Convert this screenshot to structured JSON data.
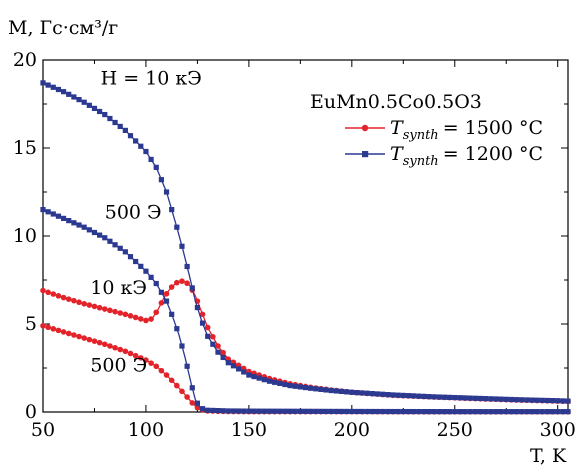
{
  "chart_data": {
    "type": "line",
    "ylabel": "M, Гс·см³/г",
    "xlabel": "T, K",
    "xlim": [
      50,
      305
    ],
    "ylim": [
      0,
      20
    ],
    "xticks": [
      50,
      100,
      150,
      200,
      250,
      300
    ],
    "yticks": [
      0,
      5,
      10,
      15,
      20
    ],
    "legend_title": "EuMn0.5Co0.5O3",
    "legend_placement": "top-right",
    "annotations": [
      {
        "text": "H = 10 кЭ",
        "x": 78,
        "y": 18.6
      },
      {
        "text": "500 Э",
        "x": 80,
        "y": 11.0
      },
      {
        "text": "10 кЭ",
        "x": 73,
        "y": 6.7
      },
      {
        "text": "500 Э",
        "x": 73,
        "y": 2.3
      }
    ],
    "series": [
      {
        "name": "T_synth = 1500 °C",
        "legend_main": "T",
        "legend_sub": "synth",
        "legend_rest": "= 1500 °C",
        "color": "#e3232a",
        "marker": "circle",
        "field": "10 кЭ",
        "x": [
          50,
          60,
          70,
          80,
          90,
          100,
          103,
          106,
          109,
          112,
          115,
          118,
          121,
          124,
          127,
          130,
          135,
          140,
          150,
          160,
          170,
          180,
          190,
          200,
          220,
          240,
          260,
          280,
          300,
          305
        ],
        "values": [
          6.9,
          6.5,
          6.15,
          5.85,
          5.55,
          5.2,
          5.3,
          5.85,
          6.55,
          7.05,
          7.35,
          7.45,
          7.25,
          6.6,
          5.7,
          4.8,
          3.75,
          3.0,
          2.3,
          1.9,
          1.6,
          1.4,
          1.25,
          1.12,
          0.95,
          0.85,
          0.76,
          0.68,
          0.62,
          0.6
        ]
      },
      {
        "name": "T_synth = 1500 °C (500 Э)",
        "color": "#e3232a",
        "marker": "circle",
        "field": "500 Э",
        "x": [
          50,
          60,
          70,
          80,
          90,
          100,
          105,
          110,
          115,
          120,
          123,
          126,
          130,
          140,
          150,
          200,
          250,
          305
        ],
        "values": [
          4.9,
          4.55,
          4.2,
          3.85,
          3.45,
          2.95,
          2.6,
          2.1,
          1.5,
          0.85,
          0.45,
          0.15,
          0.06,
          0.03,
          0.02,
          0.02,
          0.01,
          0.01
        ]
      },
      {
        "name": "T_synth = 1200 °C",
        "legend_main": "T",
        "legend_sub": "synth",
        "legend_rest": "= 1200 °C",
        "color": "#2b3990",
        "marker": "square",
        "field": "10 кЭ",
        "x": [
          50,
          60,
          70,
          80,
          90,
          100,
          105,
          110,
          115,
          118,
          121,
          124,
          127,
          130,
          135,
          140,
          150,
          160,
          170,
          180,
          190,
          200,
          220,
          240,
          260,
          280,
          300,
          305
        ],
        "values": [
          18.7,
          18.2,
          17.6,
          16.9,
          16.0,
          14.8,
          13.9,
          12.5,
          10.5,
          9.2,
          7.8,
          6.3,
          5.2,
          4.3,
          3.4,
          2.8,
          2.1,
          1.75,
          1.5,
          1.35,
          1.22,
          1.12,
          0.97,
          0.86,
          0.78,
          0.7,
          0.64,
          0.62
        ]
      },
      {
        "name": "T_synth = 1200 °C (500 Э)",
        "color": "#2b3990",
        "marker": "square",
        "field": "500 Э",
        "x": [
          50,
          60,
          70,
          80,
          90,
          100,
          105,
          110,
          113,
          116,
          119,
          122,
          124,
          126,
          128,
          130,
          140,
          150,
          200,
          250,
          305
        ],
        "values": [
          11.5,
          11.0,
          10.5,
          9.9,
          9.1,
          8.0,
          7.3,
          6.3,
          5.4,
          4.4,
          3.1,
          1.6,
          0.7,
          0.3,
          0.15,
          0.1,
          0.06,
          0.05,
          0.03,
          0.02,
          0.02
        ]
      }
    ]
  }
}
